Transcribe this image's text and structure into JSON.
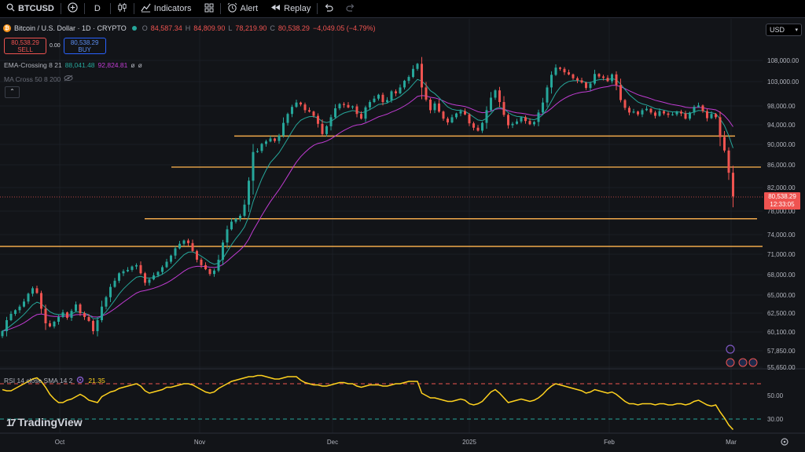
{
  "toolbar": {
    "symbol": "BTCUSD",
    "interval": "D",
    "indicators_label": "Indicators",
    "alert_label": "Alert",
    "replay_label": "Replay"
  },
  "legend": {
    "title": "Bitcoin / U.S. Dollar · 1D · CRYPTO",
    "open_label": "O",
    "open": "84,587.34",
    "high_label": "H",
    "high": "84,809.90",
    "low_label": "L",
    "low": "78,219.90",
    "close_label": "C",
    "close": "80,538.29",
    "change": "−4,049.05 (−4.79%)"
  },
  "trade": {
    "sell_price": "80,538.29",
    "sell_label": "SELL",
    "spread": "0.00",
    "buy_price": "80,538.29",
    "buy_label": "BUY"
  },
  "indicators": {
    "ema_name": "EMA-Crossing 8 21",
    "ema_fast": "88,041.48",
    "ema_slow": "92,824.81",
    "ema_na1": "ø",
    "ema_na2": "ø",
    "ma_name": "MA Cross 50 8 200",
    "rsi_name": "RSI 14 close SMA 14 2",
    "rsi_value": "21.35"
  },
  "currency": "USD",
  "price_tag": {
    "price": "80,538.29",
    "countdown": "12:33:05"
  },
  "price_axis": [
    "108,000.00",
    "103,000.00",
    "98,000.00",
    "94,000.00",
    "90,000.00",
    "86,000.00",
    "82,000.00",
    "78,000.00",
    "74,000.00",
    "71,000.00",
    "68,000.00",
    "65,000.00",
    "62,500.00",
    "60,100.00",
    "57,850.00",
    "55,650.00"
  ],
  "rsi_axis": [
    "50.00",
    "30.00"
  ],
  "time_axis": [
    "Oct",
    "Nov",
    "Dec",
    "2025",
    "Jan",
    "Feb",
    "Mar"
  ],
  "branding": "TradingView",
  "colors": {
    "up": "#26a69a",
    "down": "#ef5350",
    "level": "#f0a94b",
    "ema_fast": "#26a69a",
    "ema_slow": "#c13cd3",
    "rsi": "#ffd21e"
  },
  "chart_data": {
    "type": "candlestick",
    "series": [
      {
        "name": "BTCUSD",
        "kind": "candles",
        "closes": [
          60200,
          61600,
          62400,
          62900,
          63400,
          64100,
          65200,
          66000,
          65300,
          63100,
          61200,
          60800,
          61400,
          62000,
          62600,
          61900,
          62800,
          63700,
          62500,
          62000,
          61500,
          60200,
          61600,
          63400,
          64700,
          66200,
          67100,
          68200,
          68500,
          68700,
          69200,
          69400,
          68200,
          66800,
          67300,
          67900,
          68400,
          69100,
          69900,
          70800,
          71900,
          72600,
          73100,
          72700,
          71500,
          70200,
          69400,
          68800,
          68100,
          68600,
          70200,
          72800,
          74900,
          76200,
          76700,
          77200,
          79100,
          83200,
          88500,
          88700,
          90100,
          90600,
          91200,
          90700,
          91800,
          94400,
          96300,
          97800,
          98700,
          98300,
          97100,
          96800,
          95900,
          94200,
          92100,
          93700,
          95600,
          97500,
          98400,
          98200,
          97700,
          97900,
          96300,
          95300,
          97700,
          98800,
          99500,
          100300,
          98800,
          99200,
          101000,
          100600,
          101800,
          103200,
          104100,
          106000,
          107200,
          101800,
          99300,
          97100,
          98500,
          96800,
          95300,
          94500,
          95600,
          96400,
          96900,
          96200,
          94300,
          93400,
          92800,
          94400,
          97100,
          99700,
          101200,
          98800,
          96100,
          93900,
          94200,
          94700,
          95600,
          94800,
          94100,
          94600,
          96600,
          98700,
          101800,
          104600,
          106300,
          106000,
          105200,
          104700,
          103800,
          103300,
          102800,
          101700,
          102600,
          104800,
          104200,
          103900,
          103100,
          104700,
          102300,
          99200,
          97600,
          96600,
          96800,
          96200,
          97100,
          97400,
          96600,
          95900,
          96900,
          96400,
          96100,
          96200,
          96800,
          96400,
          95300,
          96600,
          97800,
          98100,
          96900,
          95400,
          96300,
          95600,
          91500,
          88800,
          84600,
          80500
        ]
      },
      {
        "name": "RSI 14",
        "kind": "line",
        "values": [
          55,
          54,
          54,
          56,
          58,
          60,
          62,
          64,
          65,
          62,
          57,
          51,
          47,
          44,
          44,
          46,
          47,
          49,
          51,
          49,
          46,
          45,
          44,
          49,
          51,
          53,
          54,
          56,
          57,
          58,
          59,
          60,
          58,
          54,
          52,
          53,
          54,
          55,
          57,
          57,
          58,
          59,
          60,
          60,
          59,
          57,
          55,
          53,
          52,
          53,
          56,
          58,
          60,
          62,
          63,
          64,
          65,
          66,
          66,
          67,
          67,
          66,
          65,
          64,
          64,
          65,
          66,
          66,
          66,
          63,
          61,
          60,
          59,
          59,
          58,
          58,
          59,
          60,
          61,
          61,
          60,
          60,
          58,
          57,
          58,
          59,
          59,
          59,
          58,
          58,
          59,
          60,
          60,
          61,
          62,
          62,
          62,
          52,
          50,
          48,
          48,
          47,
          46,
          45,
          45,
          46,
          47,
          46,
          43,
          42,
          43,
          45,
          49,
          53,
          55,
          52,
          48,
          44,
          45,
          46,
          47,
          46,
          45,
          46,
          48,
          51,
          55,
          58,
          60,
          59,
          58,
          57,
          56,
          55,
          54,
          52,
          53,
          55,
          54,
          53,
          52,
          53,
          51,
          48,
          45,
          43,
          43,
          42,
          43,
          43,
          43,
          42,
          43,
          43,
          42,
          42,
          43,
          43,
          42,
          43,
          45,
          46,
          44,
          42,
          41,
          42,
          36,
          31,
          25,
          21
        ]
      }
    ],
    "levels": [
      91700,
      85600,
      76700,
      72200
    ],
    "y_range": [
      55650,
      108000
    ],
    "rsi_levels": [
      60,
      30
    ],
    "x_labels": [
      "Oct",
      "Nov",
      "Dec",
      "2025",
      "Jan",
      "Feb",
      "Mar"
    ]
  }
}
